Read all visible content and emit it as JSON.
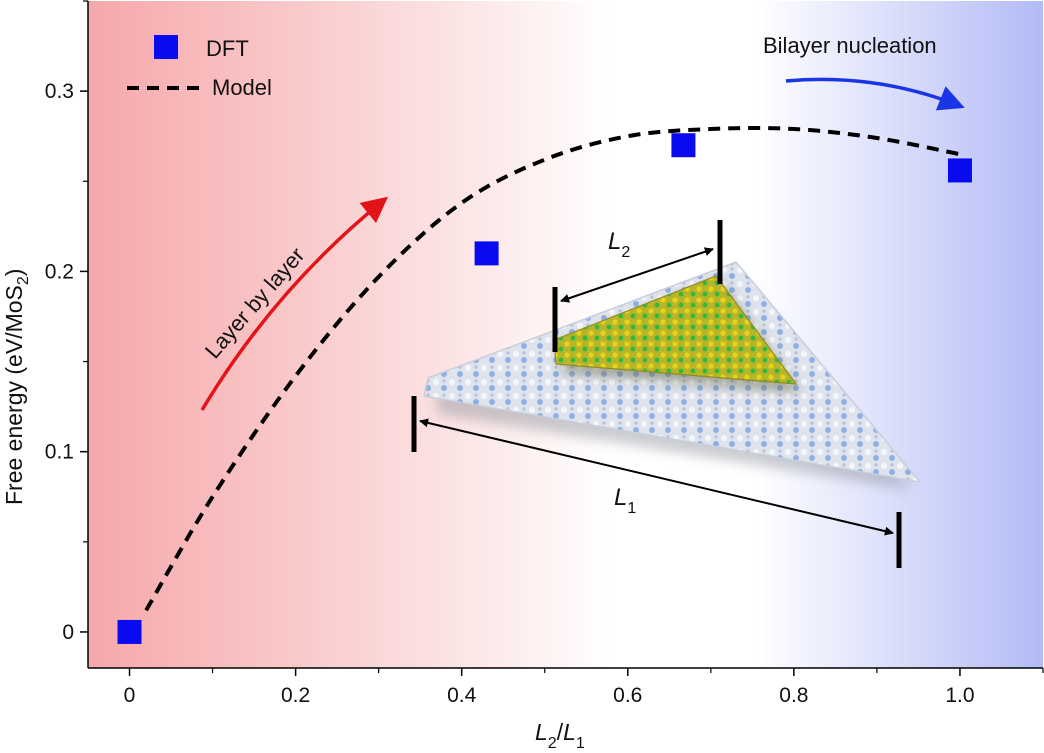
{
  "chart_data": {
    "type": "scatter",
    "xlim": [
      -0.05,
      1.1
    ],
    "ylim": [
      -0.02,
      0.35
    ],
    "x_ticks": [
      "0",
      "0.2",
      "0.4",
      "0.6",
      "0.8",
      "1.0"
    ],
    "x_tick_values": [
      0,
      0.2,
      0.4,
      0.6,
      0.8,
      1.0
    ],
    "y_ticks": [
      "0",
      "0.1",
      "0.2",
      "0.3"
    ],
    "y_tick_values": [
      0,
      0.1,
      0.2,
      0.3
    ],
    "xlabel": {
      "main1": "L",
      "sub1": "2",
      "slash": "/",
      "main2": "L",
      "sub2": "1"
    },
    "ylabel": {
      "main": "Free energy (eV/MoS",
      "sub": "2",
      "close": ")"
    },
    "grid": false,
    "legend_placement": "top-left",
    "series": [
      {
        "name": "DFT",
        "kind": "marker",
        "color": "#0a0af0",
        "x": [
          0,
          0.43,
          0.667,
          1.0
        ],
        "y": [
          0,
          0.21,
          0.27,
          0.256
        ]
      },
      {
        "name": "Model",
        "kind": "dashed-line",
        "color": "#000000",
        "x": [
          0.02,
          0.1,
          0.2,
          0.3,
          0.4,
          0.5,
          0.6,
          0.7,
          0.8,
          0.9,
          1.0
        ],
        "y": [
          0.012,
          0.075,
          0.142,
          0.197,
          0.238,
          0.262,
          0.275,
          0.279,
          0.279,
          0.274,
          0.265
        ]
      }
    ],
    "annotations": {
      "layer_by_layer": "Layer by layer",
      "bilayer_nucleation": "Bilayer nucleation",
      "l2_label": {
        "main": "L",
        "sub": "2"
      },
      "l1_label": {
        "main": "L",
        "sub": "1"
      }
    },
    "background_gradient": {
      "left": "#f6a8ab",
      "middle": "#ffffff",
      "right": "#b3bbf6"
    },
    "arrow_colors": {
      "layer_by_layer": "#e3131a",
      "bilayer_nucleation": "#1a35e6"
    }
  }
}
